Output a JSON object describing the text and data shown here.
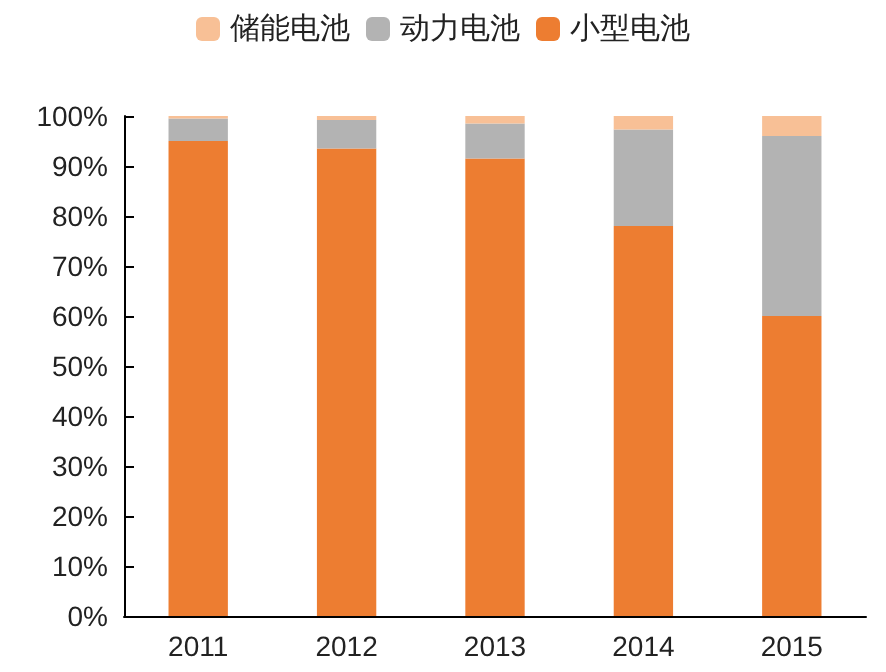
{
  "chart_data": {
    "type": "bar",
    "stacked": true,
    "categories": [
      "2011",
      "2012",
      "2013",
      "2014",
      "2015"
    ],
    "series": [
      {
        "name": "小型电池",
        "color": "#ed7d31",
        "values": [
          95,
          93.5,
          91.5,
          78,
          60
        ]
      },
      {
        "name": "动力电池",
        "color": "#b3b3b3",
        "values": [
          4.5,
          5.7,
          7,
          19.3,
          36
        ]
      },
      {
        "name": "储能电池",
        "color": "#f8c096",
        "values": [
          0.5,
          0.8,
          1.5,
          2.7,
          4
        ]
      }
    ],
    "ylim": [
      0,
      100
    ],
    "yticks": [
      {
        "value": 0,
        "label": "0%"
      },
      {
        "value": 10,
        "label": "10%"
      },
      {
        "value": 20,
        "label": "20%"
      },
      {
        "value": 30,
        "label": "30%"
      },
      {
        "value": 40,
        "label": "40%"
      },
      {
        "value": 50,
        "label": "50%"
      },
      {
        "value": 60,
        "label": "60%"
      },
      {
        "value": 70,
        "label": "70%"
      },
      {
        "value": 80,
        "label": "80%"
      },
      {
        "value": 90,
        "label": "90%"
      },
      {
        "value": 100,
        "label": "100%"
      }
    ],
    "grid": false,
    "legend": "top"
  }
}
